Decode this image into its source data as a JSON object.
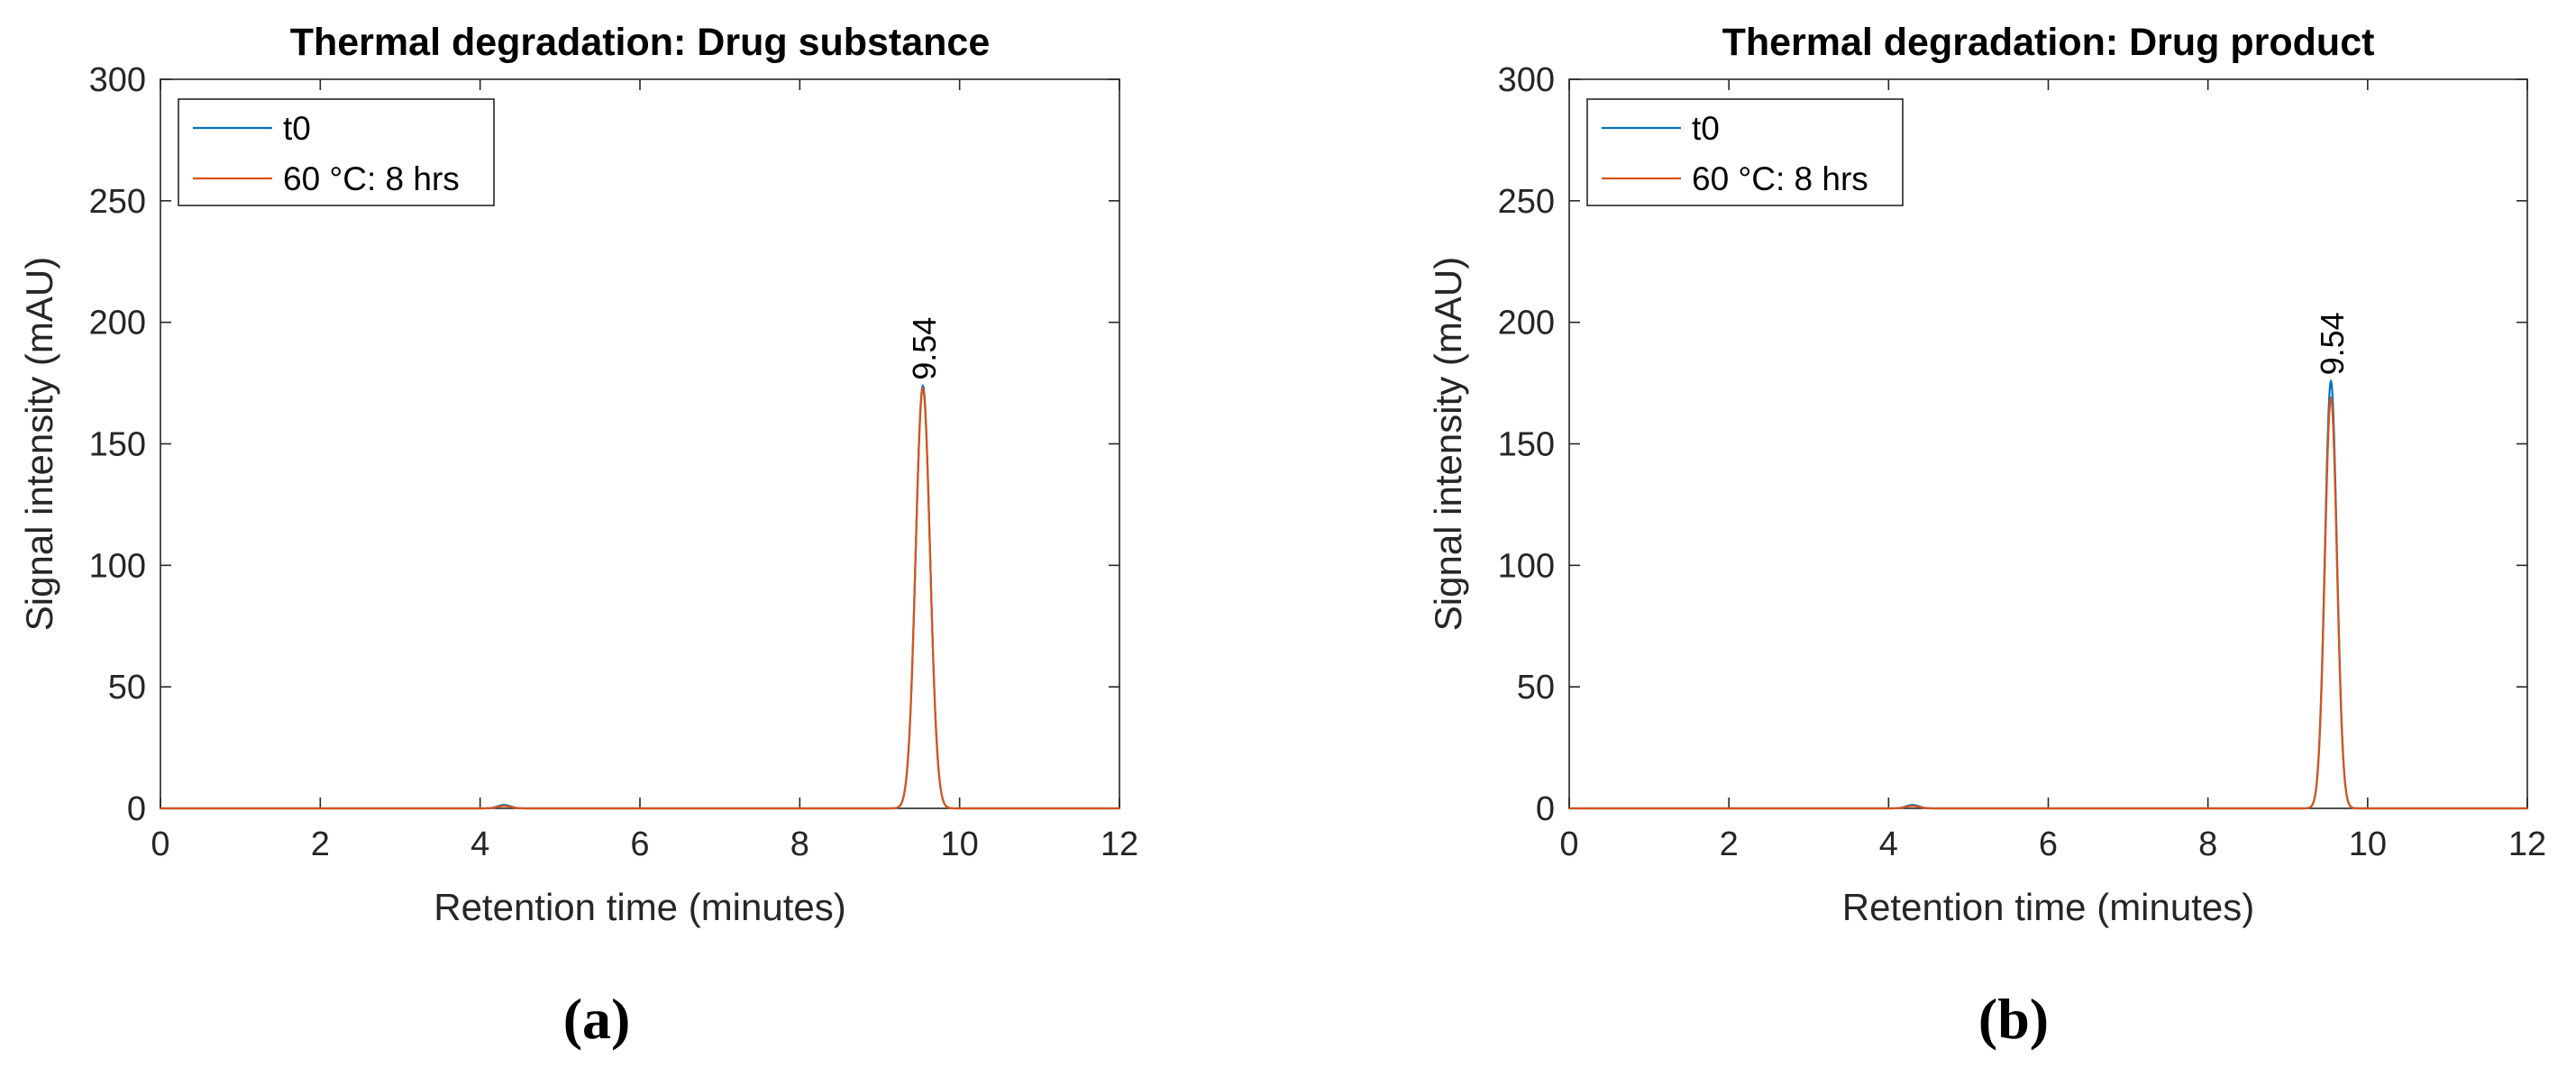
{
  "figure": {
    "panel_labels": [
      "(a)",
      "(b)"
    ]
  },
  "colors": {
    "t0": "#0072BD",
    "60C_8hrs": "#D95319",
    "axes": "#262626",
    "text": "#000000"
  },
  "chart_data": [
    {
      "type": "line",
      "title": "Thermal degradation: Drug substance",
      "xlabel": "Retention time (minutes)",
      "ylabel": "Signal intensity (mAU)",
      "xlim": [
        0,
        12
      ],
      "ylim": [
        0,
        300
      ],
      "xticks": [
        0,
        2,
        4,
        6,
        8,
        10,
        12
      ],
      "yticks": [
        0,
        50,
        100,
        150,
        200,
        250,
        300
      ],
      "grid": false,
      "legend": "top-left",
      "series": [
        {
          "name": "t0",
          "color": "#0072BD",
          "baseline": 0,
          "peaks": [
            {
              "rt": 9.54,
              "height": 174,
              "width": 0.09
            },
            {
              "rt": 4.3,
              "height": 1.4,
              "width": 0.08
            }
          ]
        },
        {
          "name": "60 °C: 8 hrs",
          "color": "#D95319",
          "baseline": 0,
          "peaks": [
            {
              "rt": 9.54,
              "height": 173,
              "width": 0.09
            },
            {
              "rt": 4.3,
              "height": 1.0,
              "width": 0.08
            }
          ]
        }
      ],
      "annotations": [
        {
          "text": "9.54",
          "x": 9.54,
          "y": 174
        }
      ]
    },
    {
      "type": "line",
      "title": "Thermal degradation: Drug product",
      "xlabel": "Retention time (minutes)",
      "ylabel": "Signal intensity (mAU)",
      "xlim": [
        0,
        12
      ],
      "ylim": [
        0,
        300
      ],
      "xticks": [
        0,
        2,
        4,
        6,
        8,
        10,
        12
      ],
      "yticks": [
        0,
        50,
        100,
        150,
        200,
        250,
        300
      ],
      "grid": false,
      "legend": "top-left",
      "series": [
        {
          "name": "t0",
          "color": "#0072BD",
          "baseline": 0,
          "peaks": [
            {
              "rt": 9.54,
              "height": 176,
              "width": 0.075
            },
            {
              "rt": 4.3,
              "height": 1.4,
              "width": 0.08
            }
          ]
        },
        {
          "name": "60 °C: 8 hrs",
          "color": "#D95319",
          "baseline": 0,
          "peaks": [
            {
              "rt": 9.54,
              "height": 169,
              "width": 0.075
            },
            {
              "rt": 4.3,
              "height": 1.0,
              "width": 0.08
            }
          ]
        }
      ],
      "annotations": [
        {
          "text": "9.54",
          "x": 9.54,
          "y": 176
        }
      ]
    }
  ]
}
